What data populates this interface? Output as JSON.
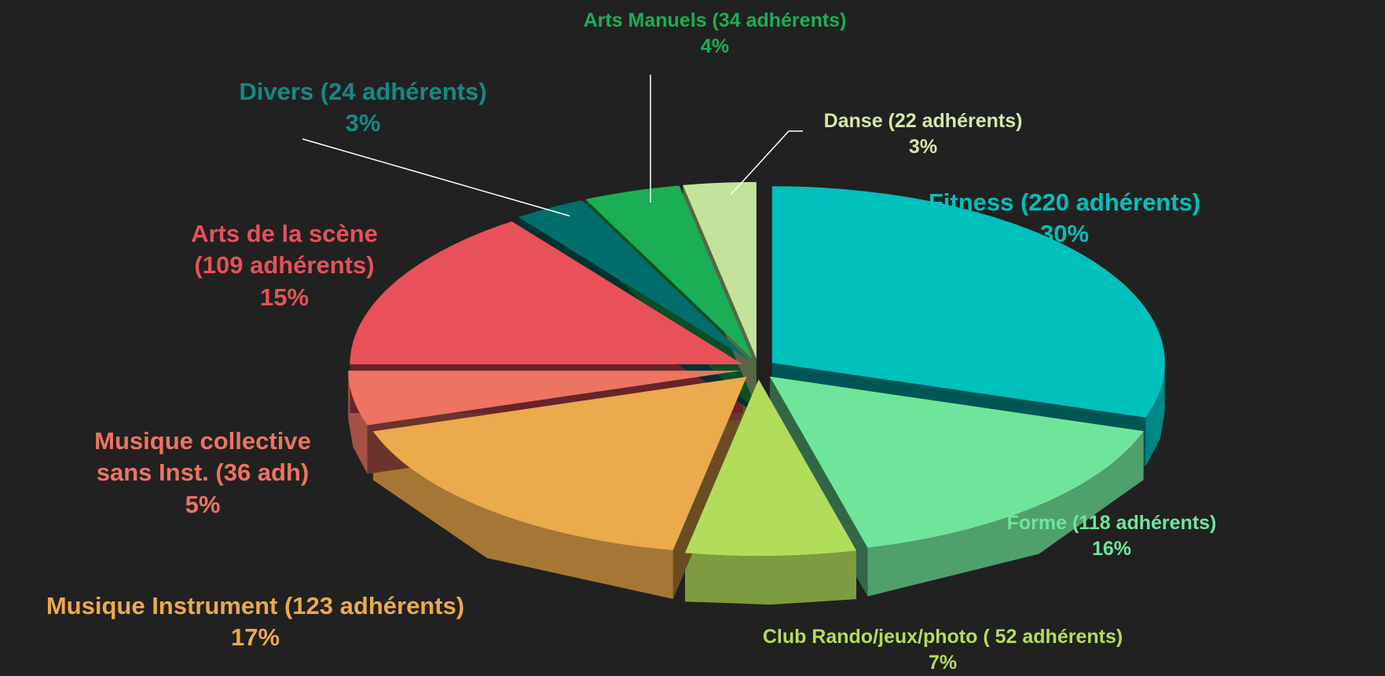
{
  "chart_data": {
    "type": "pie",
    "categories": [
      "Fitness (220 adhérents)",
      "Forme (118  adhérents)",
      "Club Rando/jeux/photo ( 52 adhérents)",
      "Musique Instrument (123 adhérents)",
      "Musique collective sans Inst. (36 adh)",
      "Arts de la scène (109 adhérents)",
      "Divers (24 adhérents)",
      "Arts Manuels (34 adhérents)",
      "Danse (22 adhérents)"
    ],
    "values": [
      30,
      16,
      7,
      17,
      5,
      15,
      3,
      4,
      3
    ],
    "value_labels": [
      "30%",
      "16%",
      "7%",
      "17%",
      "5%",
      "15%",
      "3%",
      "4%",
      "3%"
    ],
    "colors": [
      "#00c0bc",
      "#6fe59c",
      "#b2dd5a",
      "#ebaa4b",
      "#ec7461",
      "#e8505a",
      "#006e6a",
      "#1aaf55",
      "#c3e39a"
    ]
  }
}
